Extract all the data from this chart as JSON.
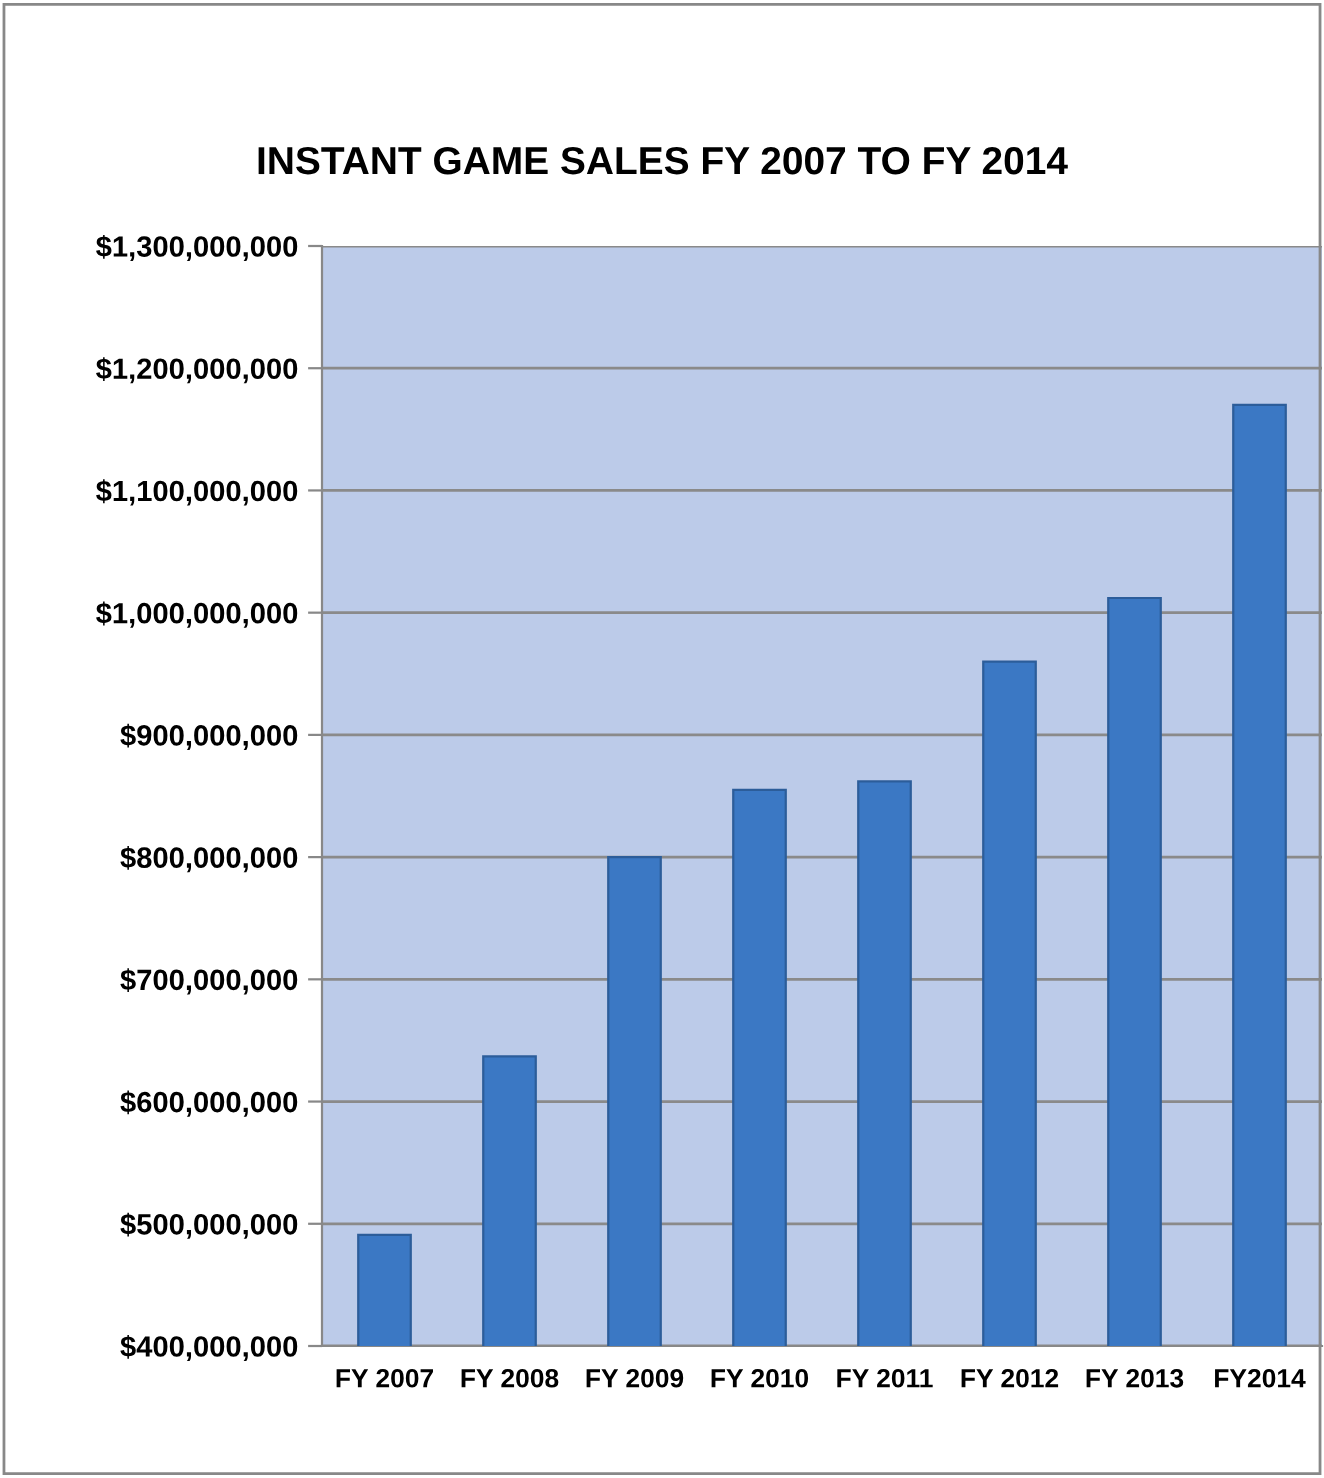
{
  "chart_data": {
    "type": "bar",
    "title": "INSTANT GAME SALES FY 2007 TO FY 2014",
    "categories": [
      "FY 2007",
      "FY 2008",
      "FY 2009",
      "FY 2010",
      "FY 2011",
      "FY 2012",
      "FY 2013",
      "FY2014"
    ],
    "values": [
      491000000,
      637000000,
      800000000,
      855000000,
      862000000,
      960000000,
      1012000000,
      1170000000
    ],
    "color": "#3b78c4",
    "ylim": [
      400000000,
      1300000000
    ],
    "yticks": [
      {
        "value": 400000000,
        "label": "$400,000,000"
      },
      {
        "value": 500000000,
        "label": "$500,000,000"
      },
      {
        "value": 600000000,
        "label": "$600,000,000"
      },
      {
        "value": 700000000,
        "label": "$700,000,000"
      },
      {
        "value": 800000000,
        "label": "$800,000,000"
      },
      {
        "value": 900000000,
        "label": "$900,000,000"
      },
      {
        "value": 1000000000,
        "label": "$1,000,000,000"
      },
      {
        "value": 1100000000,
        "label": "$1,100,000,000"
      },
      {
        "value": 1200000000,
        "label": "$1,200,000,000"
      },
      {
        "value": 1300000000,
        "label": "$1,300,000,000"
      }
    ],
    "grid": "y"
  }
}
